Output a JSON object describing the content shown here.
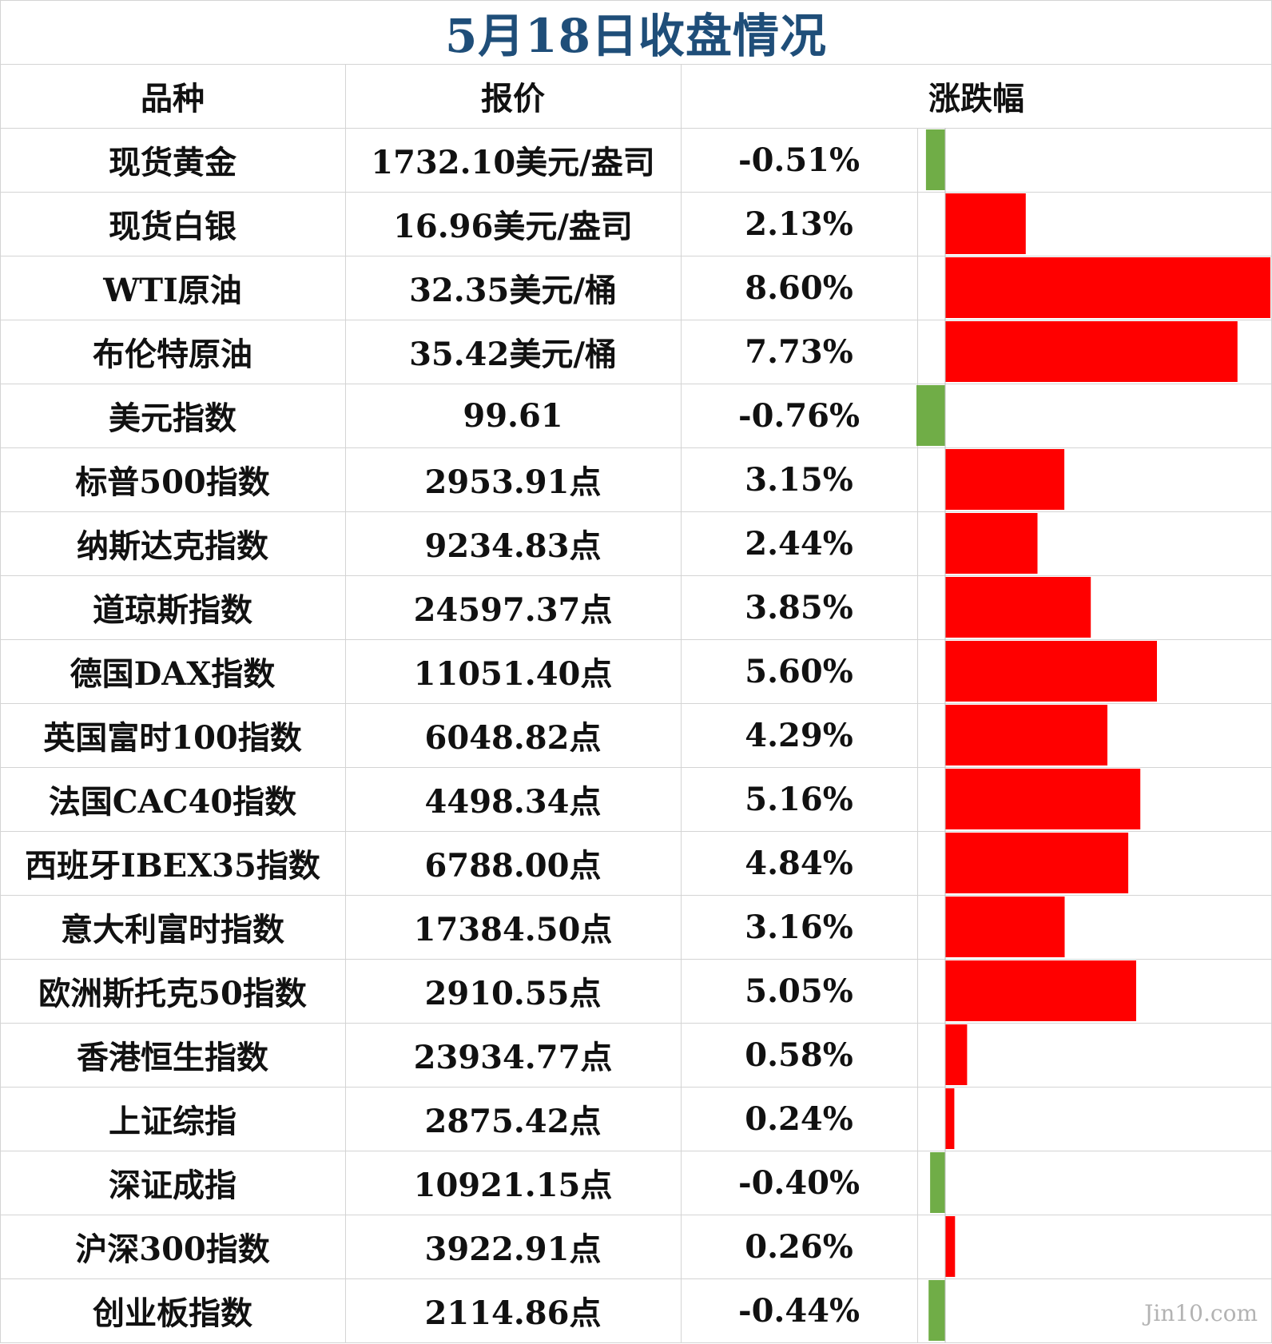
{
  "title": "5月18日收盘情况",
  "headers": {
    "name": "品种",
    "price": "报价",
    "change": "涨跌幅"
  },
  "watermark": "Jin10.com",
  "colors": {
    "up": "#ff0000",
    "down": "#70ad47",
    "title": "#1f4e79",
    "grid": "#d4d4d4"
  },
  "chart_data": {
    "type": "table",
    "columns": [
      "品种",
      "报价",
      "涨跌幅"
    ],
    "rows": [
      {
        "name": "现货黄金",
        "price": "1732.10美元/盎司",
        "change_label": "-0.51%",
        "change": -0.51
      },
      {
        "name": "现货白银",
        "price": "16.96美元/盎司",
        "change_label": "2.13%",
        "change": 2.13
      },
      {
        "name": "WTI原油",
        "price": "32.35美元/桶",
        "change_label": "8.60%",
        "change": 8.6
      },
      {
        "name": "布伦特原油",
        "price": "35.42美元/桶",
        "change_label": "7.73%",
        "change": 7.73
      },
      {
        "name": "美元指数",
        "price": "99.61",
        "change_label": "-0.76%",
        "change": -0.76
      },
      {
        "name": "标普500指数",
        "price": "2953.91点",
        "change_label": "3.15%",
        "change": 3.15
      },
      {
        "name": "纳斯达克指数",
        "price": "9234.83点",
        "change_label": "2.44%",
        "change": 2.44
      },
      {
        "name": "道琼斯指数",
        "price": "24597.37点",
        "change_label": "3.85%",
        "change": 3.85
      },
      {
        "name": "德国DAX指数",
        "price": "11051.40点",
        "change_label": "5.60%",
        "change": 5.6
      },
      {
        "name": "英国富时100指数",
        "price": "6048.82点",
        "change_label": "4.29%",
        "change": 4.29
      },
      {
        "name": "法国CAC40指数",
        "price": "4498.34点",
        "change_label": "5.16%",
        "change": 5.16
      },
      {
        "name": "西班牙IBEX35指数",
        "price": "6788.00点",
        "change_label": "4.84%",
        "change": 4.84
      },
      {
        "name": "意大利富时指数",
        "price": "17384.50点",
        "change_label": "3.16%",
        "change": 3.16
      },
      {
        "name": "欧洲斯托克50指数",
        "price": "2910.55点",
        "change_label": "5.05%",
        "change": 5.05
      },
      {
        "name": "香港恒生指数",
        "price": "23934.77点",
        "change_label": "0.58%",
        "change": 0.58
      },
      {
        "name": "上证综指",
        "price": "2875.42点",
        "change_label": "0.24%",
        "change": 0.24
      },
      {
        "name": "深证成指",
        "price": "10921.15点",
        "change_label": "-0.40%",
        "change": -0.4
      },
      {
        "name": "沪深300指数",
        "price": "3922.91点",
        "change_label": "0.26%",
        "change": 0.26
      },
      {
        "name": "创业板指数",
        "price": "2114.86点",
        "change_label": "-0.44%",
        "change": -0.44
      }
    ],
    "bar_axis_range": [
      -0.76,
      8.6
    ]
  }
}
